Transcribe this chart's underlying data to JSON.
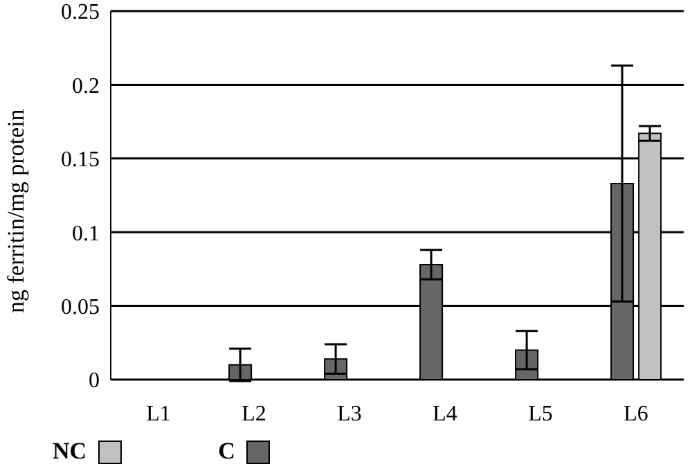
{
  "chart_data": {
    "type": "bar",
    "ylabel": "ng ferritin/mg protein",
    "categories": [
      "L1",
      "L2",
      "L3",
      "L4",
      "L5",
      "L6"
    ],
    "series": [
      {
        "name": "NC",
        "color": "#c0c0c0",
        "values": [
          null,
          null,
          null,
          null,
          null,
          0.167
        ],
        "errors": [
          null,
          null,
          null,
          null,
          null,
          0.005
        ]
      },
      {
        "name": "C",
        "color": "#666666",
        "values": [
          null,
          0.01,
          0.014,
          0.078,
          0.02,
          0.133
        ],
        "errors": [
          null,
          0.011,
          0.01,
          0.01,
          0.013,
          0.08
        ]
      }
    ],
    "ylim": [
      0,
      0.25
    ],
    "yticks": [
      0,
      0.05,
      0.1,
      0.15,
      0.2,
      0.25
    ],
    "grid": "y",
    "legend": "bottom left"
  }
}
